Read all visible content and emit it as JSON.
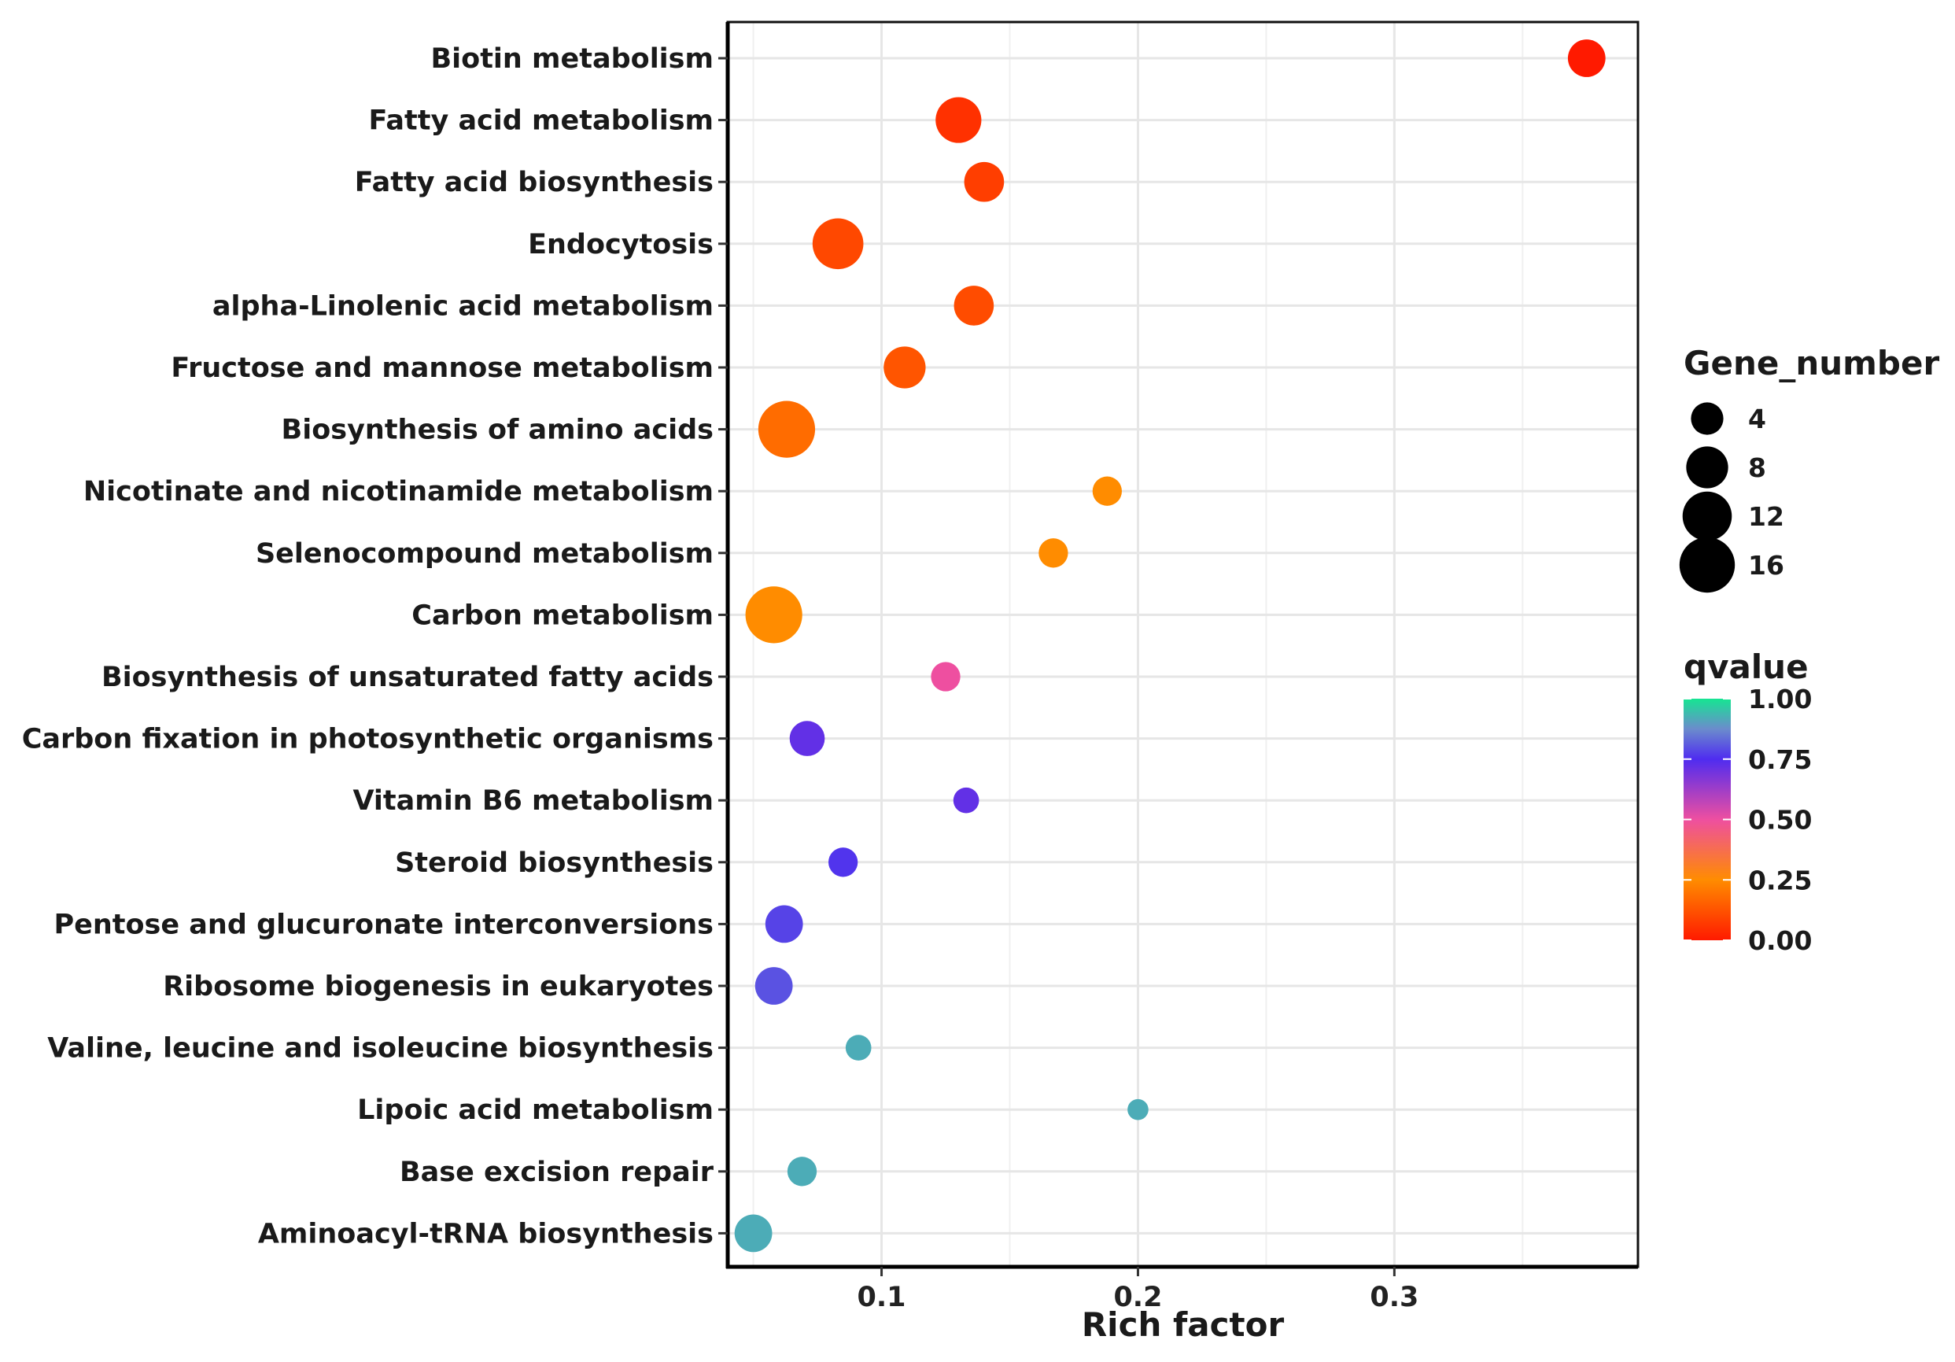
{
  "chart_data": {
    "type": "scatter",
    "title": "",
    "xlabel": "Rich factor",
    "ylabel": "",
    "xlim": [
      0.04,
      0.395
    ],
    "xticks": [
      0.1,
      0.2,
      0.3
    ],
    "xtick_labels": [
      "0.1",
      "0.2",
      "0.3"
    ],
    "grid": true,
    "categories": [
      "Biotin metabolism",
      "Fatty acid metabolism",
      "Fatty acid biosynthesis",
      "Endocytosis",
      "alpha-Linolenic acid metabolism",
      "Fructose and mannose metabolism",
      "Biosynthesis of amino acids",
      "Nicotinate and nicotinamide metabolism",
      "Selenocompound metabolism",
      "Carbon metabolism",
      "Biosynthesis of unsaturated fatty acids",
      "Carbon fixation in photosynthetic organisms",
      "Vitamin B6 metabolism",
      "Steroid biosynthesis",
      "Pentose and glucuronate interconversions",
      "Ribosome biogenesis in eukaryotes",
      "Valine, leucine and isoleucine biosynthesis",
      "Lipoic acid metabolism",
      "Base excision repair",
      "Aminoacyl-tRNA biosynthesis"
    ],
    "points": [
      {
        "term": "Biotin metabolism",
        "rich_factor": 0.375,
        "gene_number": 6,
        "qvalue": 0.0
      },
      {
        "term": "Fatty acid metabolism",
        "rich_factor": 0.13,
        "gene_number": 10,
        "qvalue": 0.05
      },
      {
        "term": "Fatty acid biosynthesis",
        "rich_factor": 0.14,
        "gene_number": 7,
        "qvalue": 0.08
      },
      {
        "term": "Endocytosis",
        "rich_factor": 0.083,
        "gene_number": 13,
        "qvalue": 0.1
      },
      {
        "term": "alpha-Linolenic acid metabolism",
        "rich_factor": 0.136,
        "gene_number": 7,
        "qvalue": 0.11
      },
      {
        "term": "Fructose and mannose metabolism",
        "rich_factor": 0.109,
        "gene_number": 8,
        "qvalue": 0.13
      },
      {
        "term": "Biosynthesis of amino acids",
        "rich_factor": 0.063,
        "gene_number": 17,
        "qvalue": 0.18
      },
      {
        "term": "Nicotinate and nicotinamide metabolism",
        "rich_factor": 0.188,
        "gene_number": 3,
        "qvalue": 0.25
      },
      {
        "term": "Selenocompound metabolism",
        "rich_factor": 0.167,
        "gene_number": 3,
        "qvalue": 0.25
      },
      {
        "term": "Carbon metabolism",
        "rich_factor": 0.058,
        "gene_number": 17,
        "qvalue": 0.25
      },
      {
        "term": "Biosynthesis of unsaturated fatty acids",
        "rich_factor": 0.125,
        "gene_number": 3,
        "qvalue": 0.5
      },
      {
        "term": "Carbon fixation in photosynthetic organisms",
        "rich_factor": 0.071,
        "gene_number": 5,
        "qvalue": 0.72
      },
      {
        "term": "Vitamin B6 metabolism",
        "rich_factor": 0.133,
        "gene_number": 2,
        "qvalue": 0.72
      },
      {
        "term": "Steroid biosynthesis",
        "rich_factor": 0.085,
        "gene_number": 3,
        "qvalue": 0.76
      },
      {
        "term": "Pentose and glucuronate interconversions",
        "rich_factor": 0.062,
        "gene_number": 6,
        "qvalue": 0.78
      },
      {
        "term": "Ribosome biogenesis in eukaryotes",
        "rich_factor": 0.058,
        "gene_number": 6,
        "qvalue": 0.8
      },
      {
        "term": "Valine, leucine and isoleucine biosynthesis",
        "rich_factor": 0.091,
        "gene_number": 2,
        "qvalue": 0.92
      },
      {
        "term": "Lipoic acid metabolism",
        "rich_factor": 0.2,
        "gene_number": 1,
        "qvalue": 0.92
      },
      {
        "term": "Base excision repair",
        "rich_factor": 0.069,
        "gene_number": 3,
        "qvalue": 0.92
      },
      {
        "term": "Aminoacyl-tRNA biosynthesis",
        "rich_factor": 0.05,
        "gene_number": 6,
        "qvalue": 0.92
      }
    ],
    "size_legend": {
      "title": "Gene_number",
      "values": [
        4,
        8,
        12,
        16
      ],
      "labels": [
        "4",
        "8",
        "12",
        "16"
      ]
    },
    "color_legend": {
      "title": "qvalue",
      "ticks": [
        1.0,
        0.75,
        0.5,
        0.25,
        0.0
      ],
      "tick_labels": [
        "1.00",
        "0.75",
        "0.50",
        "0.25",
        "0.00"
      ],
      "stops": [
        {
          "value": 0.0,
          "color": "#ff1a00"
        },
        {
          "value": 0.25,
          "color": "#ff8c00"
        },
        {
          "value": 0.5,
          "color": "#ee4fa0"
        },
        {
          "value": 0.75,
          "color": "#4f2cf0"
        },
        {
          "value": 0.875,
          "color": "#6b8ccc"
        },
        {
          "value": 1.0,
          "color": "#16e592"
        }
      ]
    }
  }
}
